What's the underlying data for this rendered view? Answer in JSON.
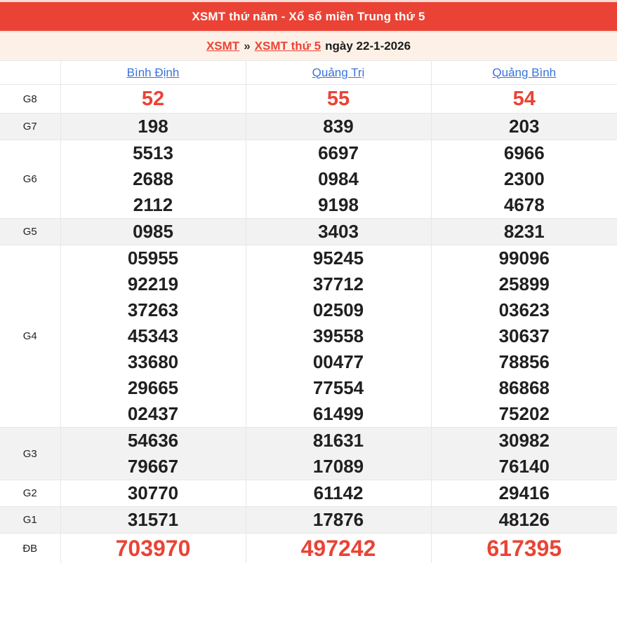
{
  "title": "XSMT thứ năm - Xổ số miền Trung thứ 5",
  "breadcrumb": {
    "link_region": "XSMT",
    "separator": "»",
    "link_day": "XSMT thứ 5",
    "date_text": "ngày 22-1-2026"
  },
  "columns": [
    "Bình Định",
    "Quảng Trị",
    "Quảng Bình"
  ],
  "prizes": [
    {
      "key": "g8",
      "label": "G8",
      "style": "red-medium",
      "values": [
        [
          "52"
        ],
        [
          "55"
        ],
        [
          "54"
        ]
      ]
    },
    {
      "key": "g7",
      "label": "G7",
      "style": "normal",
      "values": [
        [
          "198"
        ],
        [
          "839"
        ],
        [
          "203"
        ]
      ]
    },
    {
      "key": "g6",
      "label": "G6",
      "style": "normal",
      "values": [
        [
          "5513",
          "2688",
          "2112"
        ],
        [
          "6697",
          "0984",
          "9198"
        ],
        [
          "6966",
          "2300",
          "4678"
        ]
      ]
    },
    {
      "key": "g5",
      "label": "G5",
      "style": "normal",
      "values": [
        [
          "0985"
        ],
        [
          "3403"
        ],
        [
          "8231"
        ]
      ]
    },
    {
      "key": "g4",
      "label": "G4",
      "style": "normal",
      "values": [
        [
          "05955",
          "92219",
          "37263",
          "45343",
          "33680",
          "29665",
          "02437"
        ],
        [
          "95245",
          "37712",
          "02509",
          "39558",
          "00477",
          "77554",
          "61499"
        ],
        [
          "99096",
          "25899",
          "03623",
          "30637",
          "78856",
          "86868",
          "75202"
        ]
      ]
    },
    {
      "key": "g3",
      "label": "G3",
      "style": "normal",
      "values": [
        [
          "54636",
          "79667"
        ],
        [
          "81631",
          "17089"
        ],
        [
          "30982",
          "76140"
        ]
      ]
    },
    {
      "key": "g2",
      "label": "G2",
      "style": "normal",
      "values": [
        [
          "30770"
        ],
        [
          "61142"
        ],
        [
          "29416"
        ]
      ]
    },
    {
      "key": "g1",
      "label": "G1",
      "style": "normal",
      "values": [
        [
          "31571"
        ],
        [
          "17876"
        ],
        [
          "48126"
        ]
      ]
    },
    {
      "key": "db",
      "label": "ĐB",
      "style": "red-large",
      "values": [
        [
          "703970"
        ],
        [
          "497242"
        ],
        [
          "617395"
        ]
      ]
    }
  ],
  "colors": {
    "accent_red": "#ea4335",
    "link_blue": "#3a72da",
    "breadcrumb_bg": "#fdf1e7",
    "stripe_bg": "#f2f2f2"
  }
}
